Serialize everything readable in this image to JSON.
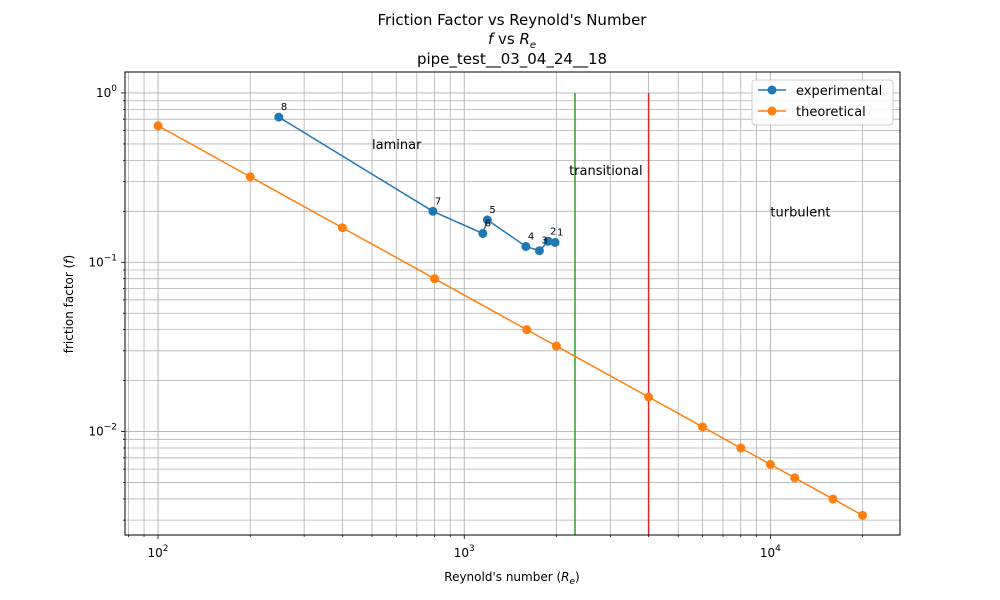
{
  "chart_data": {
    "type": "line",
    "title_line1": "Friction Factor vs Reynold's Number",
    "title_line2_f": "f",
    "title_line2_vs": " vs ",
    "title_line2_R": "R",
    "title_line2_sub": "e",
    "title_line3": "pipe_test__03_04_24__18",
    "xlabel_main": "Reynold's number (",
    "xlabel_R": "R",
    "xlabel_sub": "e",
    "xlabel_close": ")",
    "ylabel_main": "friction factor (",
    "ylabel_f": "f",
    "ylabel_close": ")",
    "xscale": "log",
    "yscale": "log",
    "xlim": [
      78,
      26500
    ],
    "ylim": [
      0.00245,
      1.33
    ],
    "grid": "both-major-minor",
    "x_ticks": [
      {
        "value": 100,
        "base": "10",
        "exp": "2"
      },
      {
        "value": 1000,
        "base": "10",
        "exp": "3"
      },
      {
        "value": 10000,
        "base": "10",
        "exp": "4"
      }
    ],
    "y_ticks": [
      {
        "value": 0.01,
        "base": "10",
        "exp": "−2"
      },
      {
        "value": 0.1,
        "base": "10",
        "exp": "−1"
      },
      {
        "value": 1,
        "base": "10",
        "exp": "0"
      }
    ],
    "series": [
      {
        "name": "experimental",
        "color": "#1f77b4",
        "x": [
          248,
          790,
          1150,
          1190,
          1590,
          1760,
          1880,
          1980
        ],
        "y": [
          0.72,
          0.2,
          0.148,
          0.178,
          0.124,
          0.117,
          0.133,
          0.131
        ],
        "point_labels": [
          "8",
          "7",
          "6",
          "5",
          "4",
          "3",
          "2",
          "1"
        ]
      },
      {
        "name": "theoretical",
        "color": "#ff7f0e",
        "x": [
          100,
          200,
          400,
          800,
          1600,
          2000,
          4000,
          6000,
          8000,
          10000,
          12000,
          16000,
          20000
        ],
        "y": [
          0.64,
          0.32,
          0.16,
          0.08,
          0.04,
          0.032,
          0.016,
          0.01067,
          0.008,
          0.0064,
          0.00533,
          0.004,
          0.0032
        ]
      }
    ],
    "vlines": [
      {
        "x": 2300,
        "y_top": 1.0,
        "color": "#2ca02c"
      },
      {
        "x": 4000,
        "y_top": 1.0,
        "color": "#d62728"
      }
    ],
    "regions": [
      {
        "text": "laminar",
        "x": 500,
        "y": 0.5
      },
      {
        "text": "transitional",
        "x": 2200,
        "y": 0.35
      },
      {
        "text": "turbulent",
        "x": 10000,
        "y": 0.2
      }
    ],
    "legend_position": "upper right"
  }
}
